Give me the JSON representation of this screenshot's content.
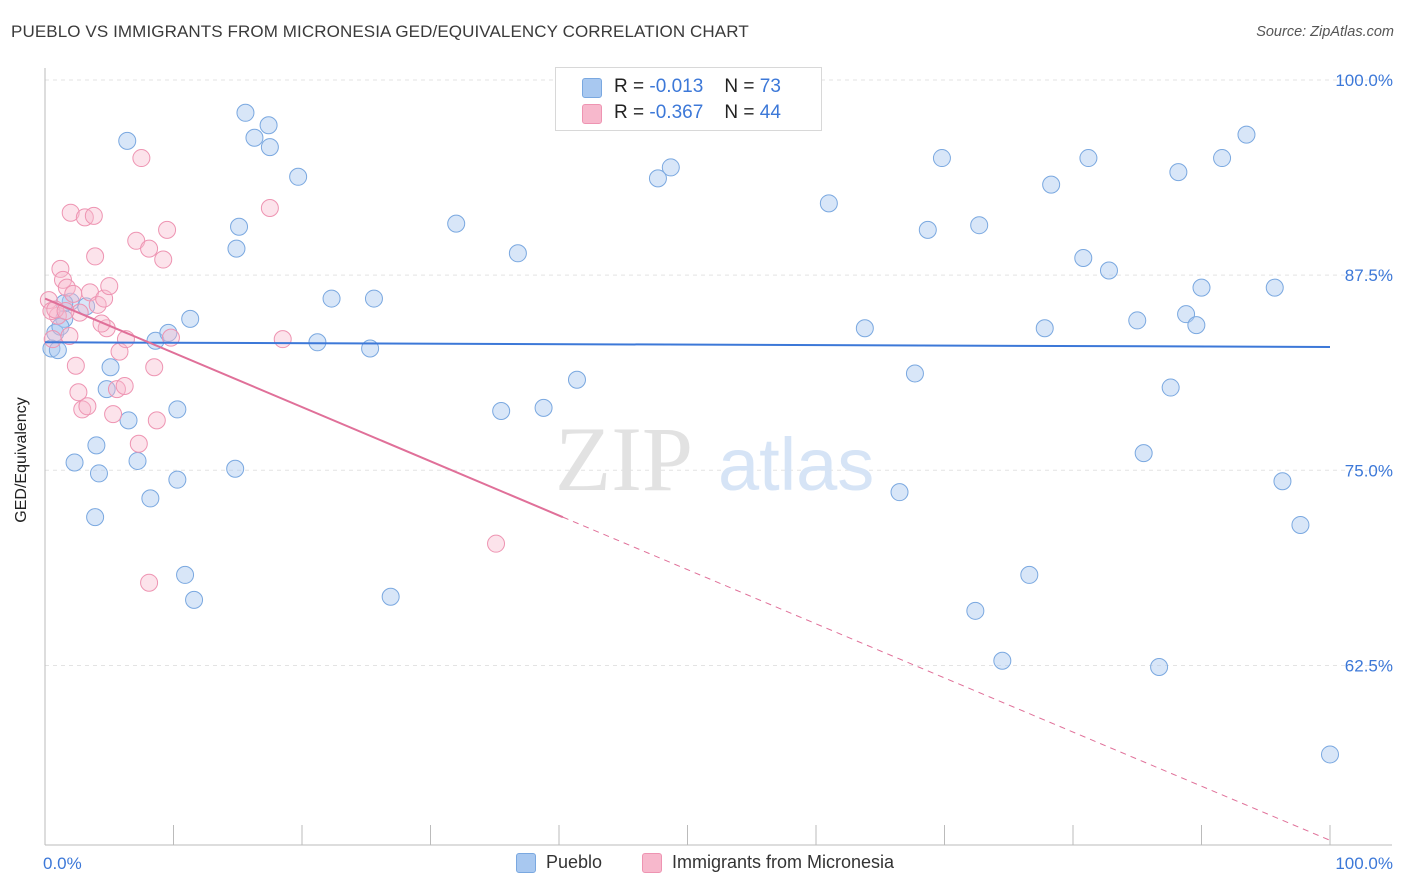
{
  "title": "PUEBLO VS IMMIGRANTS FROM MICRONESIA GED/EQUIVALENCY CORRELATION CHART",
  "source": "Source: ZipAtlas.com",
  "watermark": {
    "zip": "ZIP",
    "atlas": "atlas"
  },
  "legend": {
    "rows": [
      {
        "r_label": "R =",
        "r_value": "-0.013",
        "n_label": "N =",
        "n_value": "73",
        "color": "#a8c8f0"
      },
      {
        "r_label": "R =",
        "r_value": "-0.367",
        "n_label": "N =",
        "n_value": "44",
        "color": "#f7b8cc"
      }
    ]
  },
  "colors": {
    "blue": "#3c78d8",
    "blue_fill": "#a8c8f0",
    "pink": "#e07099",
    "pink_fill": "#f7b8cc",
    "axis_text": "#3c78d8"
  },
  "chart_data": {
    "type": "scatter",
    "title": "PUEBLO VS IMMIGRANTS FROM MICRONESIA GED/EQUIVALENCY CORRELATION CHART",
    "xlabel": "",
    "ylabel": "GED/Equivalency",
    "xlim": [
      0,
      100
    ],
    "ylim": [
      51,
      100
    ],
    "x_tick_labels": [
      "0.0%",
      "100.0%"
    ],
    "y_ticks": [
      62.5,
      75.0,
      87.5,
      100.0
    ],
    "y_tick_labels": [
      "62.5%",
      "75.0%",
      "87.5%",
      "100.0%"
    ],
    "grid": true,
    "legend_position": "top-center",
    "series": [
      {
        "name": "Pueblo",
        "color": "#a8c8f0",
        "trend": {
          "x": [
            0,
            100
          ],
          "y": [
            83.2,
            82.9
          ]
        },
        "points": [
          [
            1.5,
            84.7
          ],
          [
            0.8,
            83.8
          ],
          [
            0.5,
            82.8
          ],
          [
            1.2,
            84.2
          ],
          [
            3.2,
            85.5
          ],
          [
            2.0,
            85.8
          ],
          [
            1.0,
            82.7
          ],
          [
            2.3,
            75.5
          ],
          [
            4.2,
            74.8
          ],
          [
            3.9,
            72.0
          ],
          [
            4.8,
            80.2
          ],
          [
            6.5,
            78.2
          ],
          [
            7.2,
            75.6
          ],
          [
            8.2,
            73.2
          ],
          [
            10.3,
            74.4
          ],
          [
            10.9,
            68.3
          ],
          [
            11.6,
            66.7
          ],
          [
            8.6,
            83.3
          ],
          [
            9.6,
            83.8
          ],
          [
            11.3,
            84.7
          ],
          [
            10.3,
            78.9
          ],
          [
            14.8,
            75.1
          ],
          [
            4.0,
            76.6
          ],
          [
            5.1,
            81.6
          ],
          [
            1.5,
            85.7
          ],
          [
            6.4,
            96.1
          ],
          [
            14.9,
            89.2
          ],
          [
            15.1,
            90.6
          ],
          [
            15.6,
            97.9
          ],
          [
            16.3,
            96.3
          ],
          [
            17.4,
            97.1
          ],
          [
            17.5,
            95.7
          ],
          [
            19.7,
            93.8
          ],
          [
            21.2,
            83.2
          ],
          [
            25.3,
            82.8
          ],
          [
            22.3,
            86.0
          ],
          [
            25.6,
            86.0
          ],
          [
            26.9,
            66.9
          ],
          [
            32.0,
            90.8
          ],
          [
            35.5,
            78.8
          ],
          [
            36.8,
            88.9
          ],
          [
            38.8,
            79.0
          ],
          [
            41.4,
            80.8
          ],
          [
            47.7,
            93.7
          ],
          [
            48.7,
            94.4
          ],
          [
            61.0,
            92.1
          ],
          [
            63.8,
            84.1
          ],
          [
            66.5,
            73.6
          ],
          [
            67.7,
            81.2
          ],
          [
            68.7,
            90.4
          ],
          [
            69.8,
            95.0
          ],
          [
            72.4,
            66.0
          ],
          [
            72.7,
            90.7
          ],
          [
            74.5,
            62.8
          ],
          [
            76.6,
            68.3
          ],
          [
            77.8,
            84.1
          ],
          [
            78.3,
            93.3
          ],
          [
            80.8,
            88.6
          ],
          [
            81.2,
            95.0
          ],
          [
            82.8,
            87.8
          ],
          [
            85.0,
            84.6
          ],
          [
            85.5,
            76.1
          ],
          [
            86.7,
            62.4
          ],
          [
            87.6,
            80.3
          ],
          [
            88.2,
            94.1
          ],
          [
            88.8,
            85.0
          ],
          [
            89.6,
            84.3
          ],
          [
            90.0,
            86.7
          ],
          [
            91.6,
            95.0
          ],
          [
            93.5,
            96.5
          ],
          [
            95.7,
            86.7
          ],
          [
            96.3,
            74.3
          ],
          [
            97.7,
            71.5
          ],
          [
            100.0,
            56.8
          ]
        ]
      },
      {
        "name": "Immigrants from Micronesia",
        "color": "#f7b8cc",
        "trend": {
          "x": [
            0,
            40.3
          ],
          "y": [
            86.0,
            72.0
          ]
        },
        "trend_extension": {
          "x": [
            40.3,
            100
          ],
          "y": [
            72.0,
            51.3
          ]
        },
        "points": [
          [
            0.3,
            85.9
          ],
          [
            0.6,
            83.4
          ],
          [
            1.0,
            84.9
          ],
          [
            1.2,
            87.9
          ],
          [
            1.4,
            87.2
          ],
          [
            1.7,
            86.7
          ],
          [
            1.9,
            83.6
          ],
          [
            0.5,
            85.2
          ],
          [
            2.0,
            91.5
          ],
          [
            2.4,
            81.7
          ],
          [
            2.6,
            80.0
          ],
          [
            2.9,
            78.9
          ],
          [
            3.1,
            91.2
          ],
          [
            3.3,
            79.1
          ],
          [
            3.8,
            91.3
          ],
          [
            3.9,
            88.7
          ],
          [
            2.7,
            85.1
          ],
          [
            3.5,
            86.4
          ],
          [
            4.1,
            85.6
          ],
          [
            4.6,
            86.0
          ],
          [
            4.8,
            84.1
          ],
          [
            5.0,
            86.8
          ],
          [
            5.3,
            78.6
          ],
          [
            5.6,
            80.2
          ],
          [
            5.8,
            82.6
          ],
          [
            6.3,
            83.4
          ],
          [
            7.1,
            89.7
          ],
          [
            7.3,
            76.7
          ],
          [
            7.5,
            95.0
          ],
          [
            8.1,
            89.2
          ],
          [
            8.5,
            81.6
          ],
          [
            8.7,
            78.2
          ],
          [
            9.2,
            88.5
          ],
          [
            9.5,
            90.4
          ],
          [
            9.8,
            83.5
          ],
          [
            8.1,
            67.8
          ],
          [
            17.5,
            91.8
          ],
          [
            18.5,
            83.4
          ],
          [
            35.1,
            70.3
          ],
          [
            0.8,
            85.3
          ],
          [
            1.6,
            85.2
          ],
          [
            2.2,
            86.3
          ],
          [
            4.4,
            84.4
          ],
          [
            6.2,
            80.4
          ]
        ]
      }
    ]
  },
  "bottom_legend": [
    {
      "label": "Pueblo",
      "color": "#a8c8f0"
    },
    {
      "label": "Immigrants from Micronesia",
      "color": "#f7b8cc"
    }
  ]
}
